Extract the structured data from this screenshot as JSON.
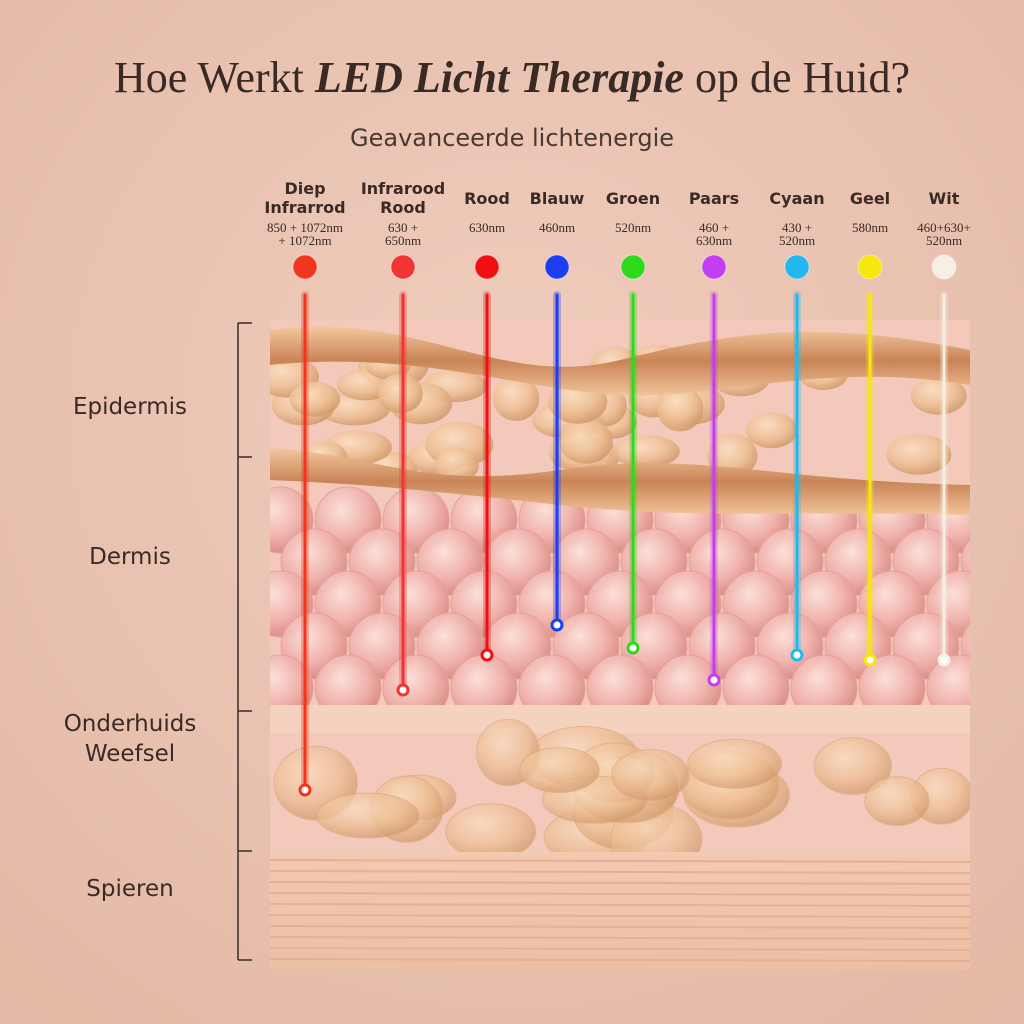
{
  "title": {
    "parts": [
      {
        "text": "Hoe Werkt ",
        "emphasis": false
      },
      {
        "text": "LED Licht Therapie",
        "emphasis": true
      },
      {
        "text": " op de Huid?",
        "emphasis": false
      }
    ]
  },
  "subtitle": "Geavanceerde lichtenergie",
  "lights": [
    {
      "name": [
        "Diep",
        "Infrarrod"
      ],
      "wavelength": [
        "850 + 1072nm",
        "+ 1072nm"
      ],
      "color": "#f0361d"
    },
    {
      "name": [
        "Infrarood",
        "Rood"
      ],
      "wavelength": [
        "630 +",
        "650nm"
      ],
      "color": "#f23434"
    },
    {
      "name": [
        "Rood"
      ],
      "wavelength": [
        "630nm"
      ],
      "color": "#f01010"
    },
    {
      "name": [
        "Blauw"
      ],
      "wavelength": [
        "460nm"
      ],
      "color": "#1a3ef0"
    },
    {
      "name": [
        "Groen"
      ],
      "wavelength": [
        "520nm"
      ],
      "color": "#30d81e"
    },
    {
      "name": [
        "Paars"
      ],
      "wavelength": [
        "460 +",
        "630nm"
      ],
      "color": "#c23ef0"
    },
    {
      "name": [
        "Cyaan"
      ],
      "wavelength": [
        "430 +",
        "520nm"
      ],
      "color": "#22b8ee"
    },
    {
      "name": [
        "Geel"
      ],
      "wavelength": [
        "580nm"
      ],
      "color": "#f6e80c"
    },
    {
      "name": [
        "Wit"
      ],
      "wavelength": [
        "460+630+",
        "520nm"
      ],
      "color": "#f6efe4"
    }
  ],
  "layers": [
    [
      "Epidermis"
    ],
    [
      "Dermis"
    ],
    [
      "Onderhuids",
      "Weefsel"
    ],
    [
      "Spieren"
    ]
  ]
}
